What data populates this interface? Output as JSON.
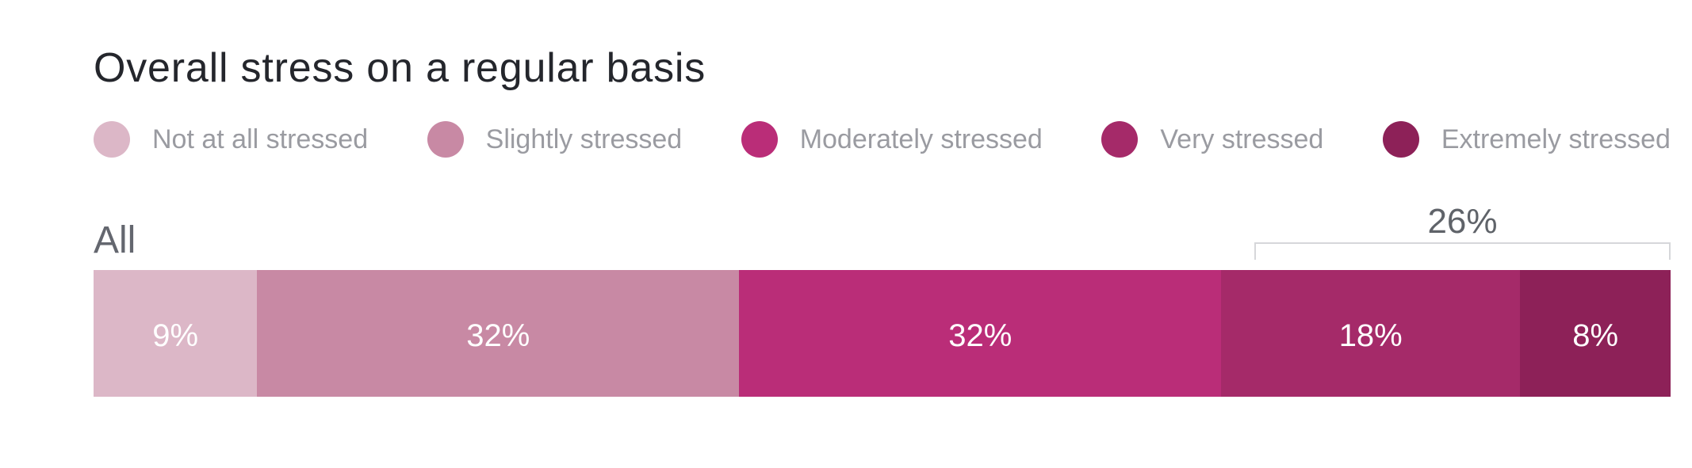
{
  "title": "Overall stress on a regular basis",
  "legend": {
    "items": [
      {
        "label": "Not at all stressed",
        "color": "#dcb7c7"
      },
      {
        "label": "Slightly stressed",
        "color": "#c889a4"
      },
      {
        "label": "Moderately stressed",
        "color": "#ba2d78"
      },
      {
        "label": "Very stressed",
        "color": "#a52a69"
      },
      {
        "label": "Extremely stressed",
        "color": "#8d2158"
      }
    ]
  },
  "row": {
    "label": "All"
  },
  "bracket": {
    "label": "26%"
  },
  "chart_data": {
    "type": "bar",
    "orientation": "horizontal",
    "stacked": true,
    "title": "Overall stress on a regular basis",
    "categories": [
      "All"
    ],
    "series": [
      {
        "name": "Not at all stressed",
        "values": [
          9
        ],
        "color": "#dcb7c7",
        "label": "9%"
      },
      {
        "name": "Slightly stressed",
        "values": [
          32
        ],
        "color": "#c889a4",
        "label": "32%"
      },
      {
        "name": "Moderately stressed",
        "values": [
          32
        ],
        "color": "#ba2d78",
        "label": "32%"
      },
      {
        "name": "Very stressed",
        "values": [
          18
        ],
        "color": "#a52a69",
        "label": "18%"
      },
      {
        "name": "Extremely stressed",
        "values": [
          8
        ],
        "color": "#8d2158",
        "label": "8%"
      }
    ],
    "annotation": {
      "label": "26%",
      "spans_last_n_segments": 2
    }
  }
}
